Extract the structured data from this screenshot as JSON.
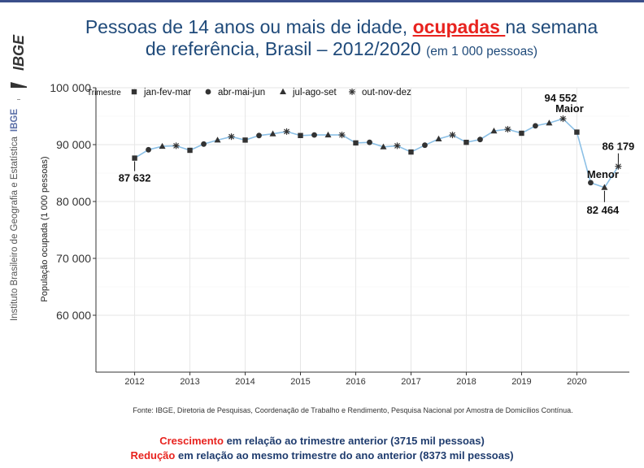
{
  "sidebar": {
    "logo_text": "IBGE",
    "institution": "Instituto Brasileiro de Geografia e Estatística",
    "abbr": "IBGE"
  },
  "title": {
    "line1_before": "Pessoas de 14 anos ou mais de idade, ",
    "line1_highlight": "ocupadas ",
    "line1_after": "na semana",
    "line2": "de referência,  Brasil – 2012/2020 ",
    "unit": "(em 1 000 pessoas)"
  },
  "source": "Fonte: IBGE, Diretoria de Pesquisas, Coordenação de Trabalho e Rendimento, Pesquisa Nacional por Amostra de Domicílios Contínua.",
  "footer": {
    "line1_red": "Crescimento",
    "line1_rest": " em relação ao trimestre anterior (3715 mil pessoas)",
    "line2_red": "Redução",
    "line2_rest": " em relação ao mesmo trimestre do ano anterior (8373 mil pessoas)"
  },
  "colors": {
    "line": "#8cc0e6",
    "marker": "#333333",
    "title": "#1f4a7a",
    "accent": "#e8231f"
  },
  "chart_data": {
    "type": "line",
    "ylabel": "População ocupada (1 000 pessoas)",
    "ylim": [
      50000,
      100000
    ],
    "yticks": [
      60000,
      70000,
      80000,
      90000,
      100000
    ],
    "ytick_labels": [
      "60 000",
      "70 000",
      "80 000",
      "90 000",
      "100 000"
    ],
    "xlim": [
      2011.3,
      2020.95
    ],
    "xticks": [
      2012,
      2013,
      2014,
      2015,
      2016,
      2017,
      2018,
      2019,
      2020
    ],
    "xtick_labels": [
      "2012",
      "2013",
      "2014",
      "2015",
      "2016",
      "2017",
      "2018",
      "2019",
      "2020"
    ],
    "grid": true,
    "legend": {
      "title": "Trimestre",
      "placement": "top-left",
      "entries": [
        {
          "label": "jan-fev-mar",
          "marker": "square"
        },
        {
          "label": "abr-mai-jun",
          "marker": "circle"
        },
        {
          "label": "jul-ago-set",
          "marker": "triangle"
        },
        {
          "label": "out-nov-dez",
          "marker": "asterisk"
        }
      ]
    },
    "x": [
      2012.0,
      2012.25,
      2012.5,
      2012.75,
      2013.0,
      2013.25,
      2013.5,
      2013.75,
      2014.0,
      2014.25,
      2014.5,
      2014.75,
      2015.0,
      2015.25,
      2015.5,
      2015.75,
      2016.0,
      2016.25,
      2016.5,
      2016.75,
      2017.0,
      2017.25,
      2017.5,
      2017.75,
      2018.0,
      2018.25,
      2018.5,
      2018.75,
      2019.0,
      2019.25,
      2019.5,
      2019.75,
      2020.0,
      2020.25,
      2020.5,
      2020.75
    ],
    "quarter": [
      0,
      1,
      2,
      3,
      0,
      1,
      2,
      3,
      0,
      1,
      2,
      3,
      0,
      1,
      2,
      3,
      0,
      1,
      2,
      3,
      0,
      1,
      2,
      3,
      0,
      1,
      2,
      3,
      0,
      1,
      2,
      3,
      0,
      1,
      2,
      3
    ],
    "values": [
      87632,
      89100,
      89700,
      89800,
      89000,
      90100,
      90800,
      91400,
      90800,
      91600,
      91900,
      92300,
      91600,
      91700,
      91700,
      91700,
      90300,
      90400,
      89600,
      89800,
      88700,
      89900,
      91000,
      91700,
      90400,
      90900,
      92400,
      92700,
      92000,
      93300,
      93800,
      94552,
      92200,
      83300,
      82464,
      86179
    ],
    "annotations": [
      {
        "text": "87 632",
        "point": 0
      },
      {
        "text": "94 552",
        "point": 31
      },
      {
        "text": "Maior",
        "point": 31
      },
      {
        "text": "Menor",
        "point": 34
      },
      {
        "text": "82 464",
        "point": 34
      },
      {
        "text": "86 179",
        "point": 35
      }
    ]
  }
}
